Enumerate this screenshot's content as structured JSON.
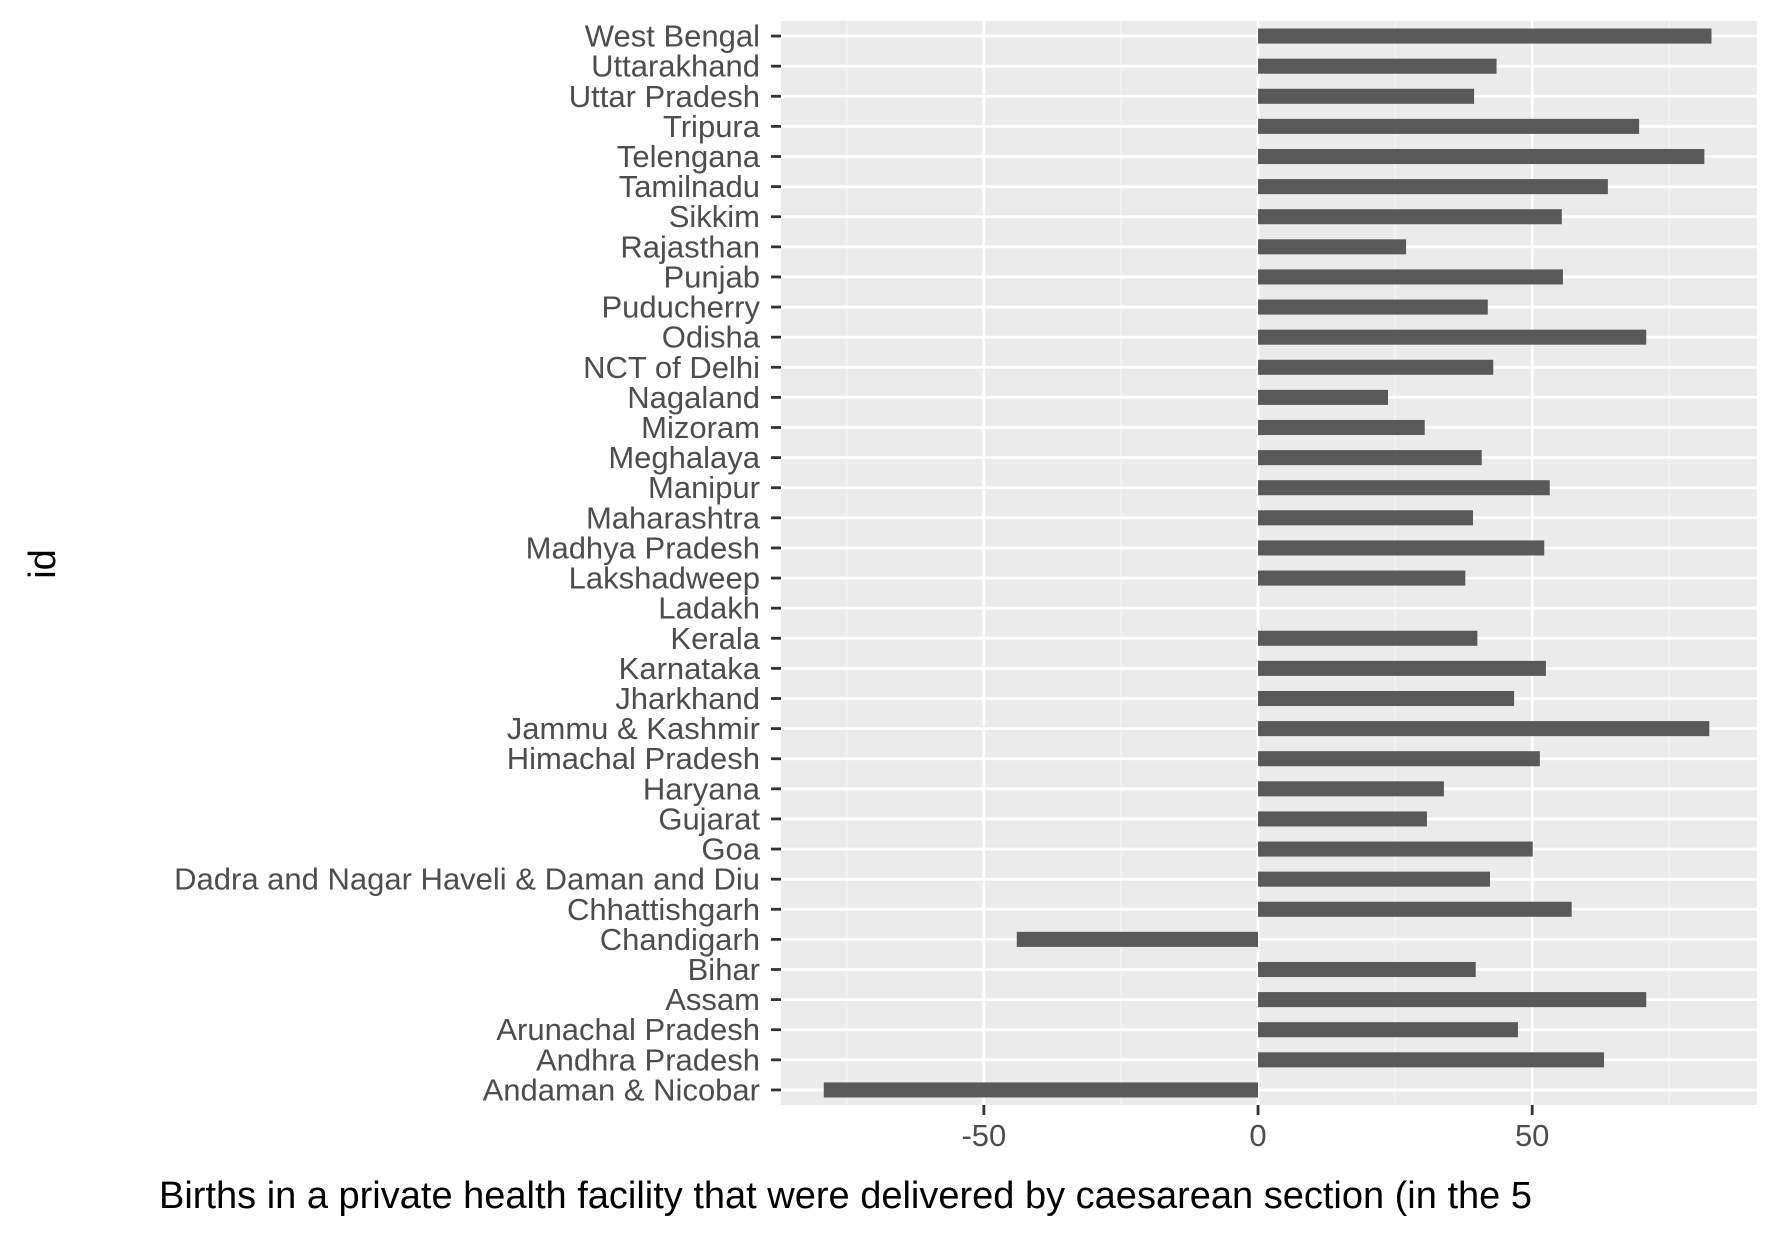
{
  "chart_data": {
    "type": "bar",
    "orientation": "horizontal",
    "xlabel": "Births in a private health facility that were delivered by caesarean section (in the 5",
    "ylabel": "id",
    "xlim": [
      -87,
      91
    ],
    "x_ticks": [
      -50,
      0,
      50
    ],
    "x_tick_labels": [
      "-50",
      "0",
      "50"
    ],
    "grid": true,
    "legend": "none",
    "categories": [
      "West Bengal",
      "Uttarakhand",
      "Uttar Pradesh",
      "Tripura",
      "Telengana",
      "Tamilnadu",
      "Sikkim",
      "Rajasthan",
      "Punjab",
      "Puducherry",
      "Odisha",
      "NCT of Delhi",
      "Nagaland",
      "Mizoram",
      "Meghalaya",
      "Manipur",
      "Maharashtra",
      "Madhya Pradesh",
      "Lakshadweep",
      "Ladakh",
      "Kerala",
      "Karnataka",
      "Jharkhand",
      "Jammu & Kashmir",
      "Himachal Pradesh",
      "Haryana",
      "Gujarat",
      "Goa",
      "Dadra and Nagar Haveli & Daman and Diu",
      "Chhattishgarh",
      "Chandigarh",
      "Bihar",
      "Assam",
      "Arunachal Pradesh",
      "Andhra Pradesh",
      "Andaman & Nicobar"
    ],
    "values": [
      82.7,
      43.5,
      39.4,
      69.5,
      81.4,
      63.8,
      55.4,
      27.0,
      55.6,
      41.9,
      70.8,
      42.9,
      23.7,
      30.4,
      40.8,
      53.2,
      39.2,
      52.2,
      37.8,
      null,
      40.0,
      52.5,
      46.7,
      82.3,
      51.4,
      33.9,
      30.8,
      50.1,
      42.3,
      57.2,
      -44.0,
      39.7,
      70.8,
      47.4,
      63.1,
      -79.2
    ],
    "colors": {
      "panel_background": "#ebebeb",
      "grid_major": "#ffffff",
      "grid_minor": "#f5f5f5",
      "bar": "#595959",
      "tick": "#333333",
      "tick_label": "#4d4d4d",
      "axis_title": "#000000"
    }
  }
}
